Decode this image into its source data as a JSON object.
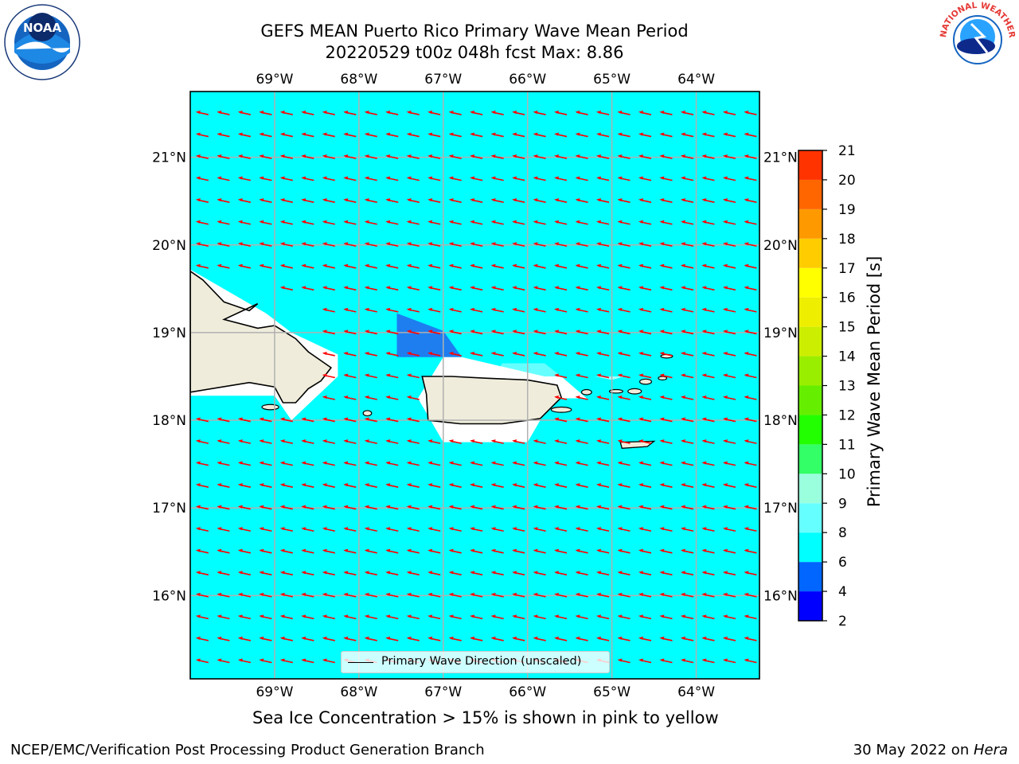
{
  "header": {
    "title_line1": "GEFS MEAN Puerto Rico Primary Wave Mean Period",
    "title_line2": "20220529 t00z 048h fcst   Max: 8.86"
  },
  "map": {
    "lon_labels": [
      "69°W",
      "68°W",
      "67°W",
      "66°W",
      "65°W",
      "64°W"
    ],
    "lat_labels": [
      "21°N",
      "20°N",
      "19°N",
      "18°N",
      "17°N",
      "16°N"
    ],
    "lon_range": [
      -70,
      -63.25
    ],
    "lat_range": [
      15.05,
      21.75
    ],
    "ocean_color": "#00ffff",
    "land_color": "#efecdb",
    "arrow_color": "#ff0000",
    "legend_label": "Primary Wave Direction (unscaled)"
  },
  "colorbar": {
    "label": "Primary Wave Mean Period [s]",
    "ticks": [
      "2",
      "4",
      "6",
      "8",
      "9",
      "10",
      "11",
      "12",
      "13",
      "14",
      "15",
      "16",
      "17",
      "18",
      "19",
      "20",
      "21"
    ],
    "colors": [
      "#0000ff",
      "#0066ff",
      "#00ffff",
      "#66ffff",
      "#99ffdd",
      "#33ff66",
      "#22ff00",
      "#66ee00",
      "#99ee00",
      "#ccee00",
      "#eeee00",
      "#ffff00",
      "#ffcc00",
      "#ff9900",
      "#ff6600",
      "#ff3300",
      "#ff0000"
    ]
  },
  "footer": {
    "note": "Sea Ice Concentration > 15% is shown in pink to yellow",
    "left": "NCEP/EMC/Verification Post Processing Product Generation Branch",
    "right_prefix": "30 May 2022 on ",
    "right_machine": "Hera"
  },
  "logos": {
    "noaa_text": "NOAA",
    "nws_text": "NATIONAL WEATHER SERVICE"
  }
}
